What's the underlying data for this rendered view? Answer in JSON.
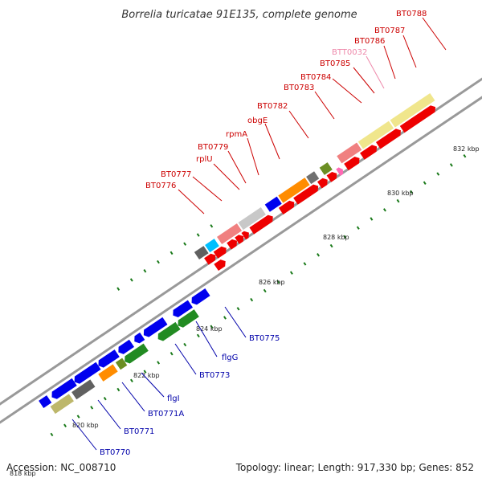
{
  "title": "Borrelia turicatae 91E135, complete genome",
  "accession": "Accession: NC_008710",
  "summary": "Topology: linear; Length: 917,330 bp; Genes: 852",
  "ticks": [
    "818 kbp",
    "820 kbp",
    "822 kbp",
    "824 kbp",
    "826 kbp",
    "828 kbp",
    "830 kbp",
    "832 kbp"
  ],
  "labels_top": [
    {
      "text": "BT0788",
      "color": "#cc0000"
    },
    {
      "text": "BT0787",
      "color": "#cc0000"
    },
    {
      "text": "BT0786",
      "color": "#cc0000"
    },
    {
      "text": "BTT0032",
      "color": "#ee88aa"
    },
    {
      "text": "BT0785",
      "color": "#cc0000"
    },
    {
      "text": "BT0784",
      "color": "#cc0000"
    },
    {
      "text": "BT0783",
      "color": "#cc0000"
    },
    {
      "text": "BT0782",
      "color": "#cc0000"
    },
    {
      "text": "obgE",
      "color": "#cc0000"
    },
    {
      "text": "rpmA",
      "color": "#cc0000"
    },
    {
      "text": "BT0779",
      "color": "#cc0000"
    },
    {
      "text": "rplU",
      "color": "#cc0000"
    },
    {
      "text": "BT0777",
      "color": "#cc0000"
    },
    {
      "text": "BT0776",
      "color": "#cc0000"
    }
  ],
  "labels_bottom": [
    {
      "text": "BT0775",
      "color": "#0000aa"
    },
    {
      "text": "flgG",
      "color": "#0000aa"
    },
    {
      "text": "BT0773",
      "color": "#0000aa"
    },
    {
      "text": "flgI",
      "color": "#0000aa"
    },
    {
      "text": "BT0771A",
      "color": "#0000aa"
    },
    {
      "text": "BT0771",
      "color": "#0000aa"
    },
    {
      "text": "BT0770",
      "color": "#0000aa"
    }
  ]
}
